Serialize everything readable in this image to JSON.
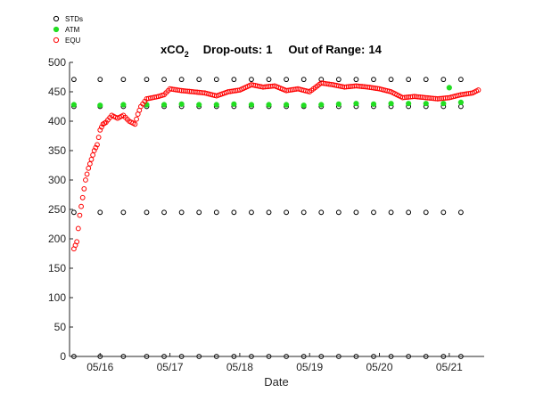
{
  "chart_data": {
    "type": "scatter",
    "title": {
      "main": "xCO",
      "main_sub": "2",
      "dropouts_label": "Drop-outs:",
      "dropouts_value": "1",
      "out_of_range_label": "Out of Range:",
      "out_of_range_value": "14"
    },
    "xlabel": "Date",
    "ylabel": "",
    "ylim": [
      0,
      500
    ],
    "xlim": [
      "05/15 13:30",
      "05/21 12:00"
    ],
    "yticks": [
      0,
      50,
      100,
      150,
      200,
      250,
      300,
      350,
      400,
      450,
      500
    ],
    "xticks": [
      {
        "label": "05/16",
        "at": "05/16 00:00"
      },
      {
        "label": "05/17",
        "at": "05/17 00:00"
      },
      {
        "label": "05/18",
        "at": "05/18 00:00"
      },
      {
        "label": "05/19",
        "at": "05/19 00:00"
      },
      {
        "label": "05/20",
        "at": "05/20 00:00"
      },
      {
        "label": "05/21",
        "at": "05/21 00:00"
      }
    ],
    "legend_position": "top-left",
    "series": [
      {
        "name": "STDs",
        "marker": "open-circle",
        "color": "#000000",
        "levels": [
          0,
          245,
          425,
          471
        ],
        "x": [
          "05/15 15:00",
          "05/16 00:00",
          "05/16 08:00",
          "05/16 16:00",
          "05/16 22:00",
          "05/17 04:00",
          "05/17 10:00",
          "05/17 16:00",
          "05/17 22:00",
          "05/18 04:00",
          "05/18 10:00",
          "05/18 16:00",
          "05/18 22:00",
          "05/19 04:00",
          "05/19 10:00",
          "05/19 16:00",
          "05/19 22:00",
          "05/20 04:00",
          "05/20 10:00",
          "05/20 16:00",
          "05/20 22:00",
          "05/21 04:00"
        ]
      },
      {
        "name": "ATM",
        "marker": "filled-circle",
        "color": "#22dd22",
        "x": [
          "05/15 15:00",
          "05/16 00:00",
          "05/16 08:00",
          "05/16 16:00",
          "05/16 22:00",
          "05/17 04:00",
          "05/17 10:00",
          "05/17 16:00",
          "05/17 22:00",
          "05/18 04:00",
          "05/18 10:00",
          "05/18 16:00",
          "05/18 22:00",
          "05/19 04:00",
          "05/19 10:00",
          "05/19 16:00",
          "05/19 22:00",
          "05/20 04:00",
          "05/20 10:00",
          "05/20 16:00",
          "05/20 22:00",
          "05/21 00:00",
          "05/21 04:00"
        ],
        "y": [
          428,
          427,
          428,
          428,
          428,
          429,
          428,
          428,
          429,
          428,
          428,
          428,
          427,
          428,
          429,
          430,
          429,
          430,
          430,
          430,
          430,
          457,
          432
        ]
      },
      {
        "name": "EQU",
        "marker": "open-circle",
        "color": "#ff0000",
        "x": [
          "05/15 15:00",
          "05/15 16:00",
          "05/15 17:00",
          "05/15 18:00",
          "05/15 19:00",
          "05/15 20:00",
          "05/15 21:00",
          "05/15 22:00",
          "05/15 23:00",
          "05/16 00:00",
          "05/16 01:00",
          "05/16 02:00",
          "05/16 04:00",
          "05/16 06:00",
          "05/16 08:00",
          "05/16 10:00",
          "05/16 12:00",
          "05/16 13:00",
          "05/16 14:00",
          "05/16 16:00",
          "05/16 18:00",
          "05/16 20:00",
          "05/16 22:00",
          "05/17 00:00",
          "05/17 04:00",
          "05/17 08:00",
          "05/17 12:00",
          "05/17 16:00",
          "05/17 20:00",
          "05/18 00:00",
          "05/18 04:00",
          "05/18 08:00",
          "05/18 12:00",
          "05/18 16:00",
          "05/18 20:00",
          "05/19 00:00",
          "05/19 04:00",
          "05/19 08:00",
          "05/19 12:00",
          "05/19 16:00",
          "05/19 20:00",
          "05/20 00:00",
          "05/20 04:00",
          "05/20 08:00",
          "05/20 12:00",
          "05/20 16:00",
          "05/20 20:00",
          "05/21 00:00",
          "05/21 04:00",
          "05/21 08:00",
          "05/21 10:00"
        ],
        "y": [
          183,
          195,
          240,
          270,
          300,
          320,
          335,
          350,
          360,
          385,
          395,
          398,
          410,
          405,
          410,
          400,
          395,
          412,
          425,
          438,
          440,
          442,
          445,
          455,
          452,
          450,
          448,
          443,
          450,
          453,
          462,
          458,
          460,
          452,
          455,
          450,
          465,
          462,
          458,
          460,
          458,
          455,
          450,
          440,
          442,
          440,
          438,
          440,
          445,
          448,
          453
        ]
      }
    ]
  }
}
